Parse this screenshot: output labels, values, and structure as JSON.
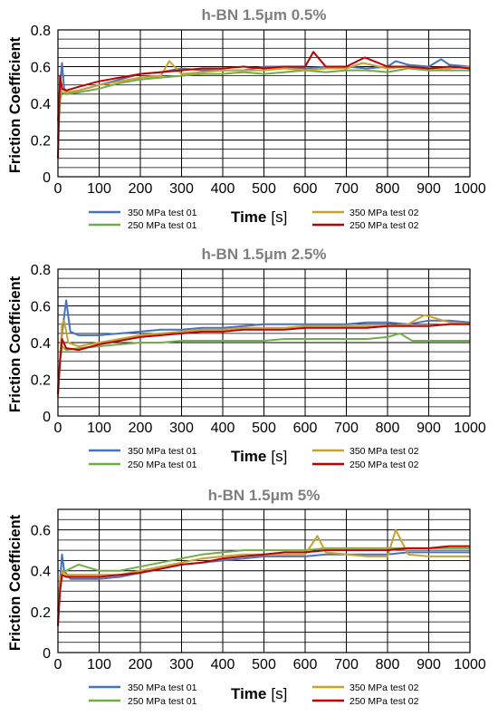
{
  "chart_data": [
    {
      "type": "line",
      "title": "h-BN 1.5μm 0.5%",
      "xlabel": "Time",
      "xunit": "[s]",
      "ylabel": "Friction Coefficient",
      "xlim": [
        0,
        1000
      ],
      "ylim": [
        0,
        0.8
      ],
      "xticks": [
        0,
        100,
        200,
        300,
        400,
        500,
        600,
        700,
        800,
        900,
        1000
      ],
      "yticks": [
        0,
        0.2,
        0.4,
        0.6,
        0.8
      ],
      "grid": true,
      "legend_position": "below",
      "series": [
        {
          "name": "350 MPa test 01",
          "color": "#4472c4",
          "x": [
            0,
            5,
            10,
            15,
            25,
            50,
            100,
            150,
            200,
            250,
            300,
            350,
            400,
            450,
            500,
            550,
            600,
            650,
            700,
            750,
            800,
            820,
            850,
            900,
            930,
            950,
            1000
          ],
          "y": [
            0.3,
            0.5,
            0.62,
            0.48,
            0.46,
            0.47,
            0.5,
            0.53,
            0.56,
            0.57,
            0.59,
            0.58,
            0.58,
            0.58,
            0.6,
            0.6,
            0.59,
            0.6,
            0.6,
            0.59,
            0.6,
            0.63,
            0.61,
            0.6,
            0.64,
            0.61,
            0.6
          ]
        },
        {
          "name": "250 MPa test 01",
          "color": "#70ad47",
          "x": [
            0,
            5,
            10,
            20,
            50,
            100,
            150,
            200,
            250,
            300,
            350,
            400,
            450,
            500,
            550,
            600,
            650,
            700,
            750,
            800,
            850,
            900,
            950,
            1000
          ],
          "y": [
            0.2,
            0.42,
            0.46,
            0.45,
            0.46,
            0.48,
            0.51,
            0.53,
            0.54,
            0.55,
            0.56,
            0.56,
            0.57,
            0.56,
            0.57,
            0.58,
            0.57,
            0.58,
            0.58,
            0.57,
            0.59,
            0.58,
            0.58,
            0.58
          ]
        },
        {
          "name": "350 MPa test 02",
          "color": "#c9a227",
          "x": [
            0,
            5,
            10,
            20,
            50,
            100,
            150,
            200,
            250,
            270,
            300,
            350,
            400,
            450,
            500,
            550,
            600,
            650,
            700,
            740,
            800,
            850,
            900,
            950,
            1000
          ],
          "y": [
            0.3,
            0.45,
            0.48,
            0.46,
            0.47,
            0.5,
            0.52,
            0.54,
            0.55,
            0.63,
            0.56,
            0.57,
            0.58,
            0.58,
            0.58,
            0.59,
            0.58,
            0.59,
            0.59,
            0.62,
            0.59,
            0.6,
            0.59,
            0.59,
            0.6
          ]
        },
        {
          "name": "250 MPa test 02",
          "color": "#c00000",
          "x": [
            0,
            5,
            10,
            20,
            50,
            100,
            150,
            200,
            250,
            300,
            350,
            400,
            450,
            500,
            550,
            600,
            620,
            650,
            700,
            745,
            800,
            850,
            900,
            950,
            1000
          ],
          "y": [
            0.1,
            0.55,
            0.48,
            0.47,
            0.49,
            0.52,
            0.54,
            0.56,
            0.57,
            0.58,
            0.59,
            0.59,
            0.6,
            0.59,
            0.6,
            0.6,
            0.68,
            0.6,
            0.6,
            0.65,
            0.6,
            0.6,
            0.59,
            0.6,
            0.59
          ]
        }
      ]
    },
    {
      "type": "line",
      "title": "h-BN 1.5μm 2.5%",
      "xlabel": "Time",
      "xunit": "[s]",
      "ylabel": "Friction Coefficient",
      "xlim": [
        0,
        1000
      ],
      "ylim": [
        0,
        0.8
      ],
      "xticks": [
        0,
        100,
        200,
        300,
        400,
        500,
        600,
        700,
        800,
        900,
        1000
      ],
      "yticks": [
        0,
        0.2,
        0.4,
        0.6,
        0.8
      ],
      "grid": true,
      "legend_position": "below",
      "series": [
        {
          "name": "350 MPa test 01",
          "color": "#4472c4",
          "x": [
            0,
            5,
            10,
            20,
            30,
            50,
            100,
            150,
            200,
            250,
            300,
            350,
            400,
            450,
            500,
            550,
            600,
            650,
            700,
            750,
            800,
            850,
            900,
            950,
            1000
          ],
          "y": [
            0.15,
            0.3,
            0.45,
            0.63,
            0.46,
            0.44,
            0.44,
            0.45,
            0.46,
            0.47,
            0.47,
            0.48,
            0.48,
            0.49,
            0.5,
            0.5,
            0.5,
            0.5,
            0.5,
            0.51,
            0.51,
            0.5,
            0.52,
            0.52,
            0.51
          ]
        },
        {
          "name": "250 MPa test 01",
          "color": "#70ad47",
          "x": [
            0,
            5,
            10,
            20,
            50,
            100,
            150,
            200,
            250,
            300,
            350,
            400,
            450,
            500,
            550,
            600,
            650,
            700,
            750,
            800,
            830,
            860,
            900,
            950,
            1000
          ],
          "y": [
            0.12,
            0.3,
            0.38,
            0.36,
            0.37,
            0.38,
            0.39,
            0.4,
            0.4,
            0.41,
            0.41,
            0.41,
            0.41,
            0.41,
            0.42,
            0.42,
            0.42,
            0.42,
            0.42,
            0.43,
            0.45,
            0.41,
            0.41,
            0.41,
            0.41
          ]
        },
        {
          "name": "350 MPa test 02",
          "color": "#c9a227",
          "x": [
            0,
            5,
            10,
            15,
            25,
            50,
            100,
            150,
            200,
            250,
            300,
            350,
            400,
            450,
            500,
            550,
            600,
            650,
            700,
            750,
            800,
            850,
            890,
            950,
            1000
          ],
          "y": [
            0.1,
            0.3,
            0.5,
            0.52,
            0.4,
            0.38,
            0.4,
            0.42,
            0.44,
            0.45,
            0.46,
            0.47,
            0.47,
            0.48,
            0.48,
            0.48,
            0.49,
            0.49,
            0.49,
            0.49,
            0.49,
            0.5,
            0.55,
            0.51,
            0.5
          ]
        },
        {
          "name": "250 MPa test 02",
          "color": "#c00000",
          "x": [
            0,
            5,
            10,
            20,
            50,
            100,
            150,
            200,
            250,
            300,
            350,
            400,
            450,
            500,
            550,
            600,
            650,
            700,
            750,
            800,
            850,
            900,
            950,
            1000
          ],
          "y": [
            0.12,
            0.3,
            0.42,
            0.37,
            0.36,
            0.39,
            0.41,
            0.43,
            0.44,
            0.45,
            0.46,
            0.46,
            0.47,
            0.47,
            0.47,
            0.48,
            0.48,
            0.48,
            0.48,
            0.49,
            0.49,
            0.49,
            0.5,
            0.5
          ]
        }
      ]
    },
    {
      "type": "line",
      "title": "h-BN 1.5μm 5%",
      "xlabel": "Time",
      "xunit": "[s]",
      "ylabel": "Friction Coefficient",
      "xlim": [
        0,
        1000
      ],
      "ylim": [
        0,
        0.7
      ],
      "xticks": [
        0,
        100,
        200,
        300,
        400,
        500,
        600,
        700,
        800,
        900,
        1000
      ],
      "yticks": [
        0,
        0.2,
        0.4,
        0.6
      ],
      "grid": true,
      "legend_position": "below",
      "series": [
        {
          "name": "350 MPa test 01",
          "color": "#4472c4",
          "x": [
            0,
            5,
            10,
            15,
            30,
            50,
            100,
            150,
            200,
            250,
            300,
            350,
            400,
            450,
            500,
            550,
            600,
            650,
            700,
            750,
            800,
            850,
            900,
            950,
            1000
          ],
          "y": [
            0.15,
            0.35,
            0.48,
            0.4,
            0.36,
            0.36,
            0.36,
            0.37,
            0.39,
            0.41,
            0.43,
            0.44,
            0.45,
            0.46,
            0.47,
            0.47,
            0.47,
            0.48,
            0.48,
            0.48,
            0.48,
            0.49,
            0.49,
            0.49,
            0.49
          ]
        },
        {
          "name": "250 MPa test 01",
          "color": "#70ad47",
          "x": [
            0,
            5,
            10,
            20,
            50,
            100,
            150,
            200,
            250,
            300,
            350,
            400,
            450,
            500,
            550,
            600,
            650,
            700,
            750,
            800,
            850,
            900,
            950,
            1000
          ],
          "y": [
            0.2,
            0.35,
            0.39,
            0.4,
            0.43,
            0.4,
            0.4,
            0.42,
            0.44,
            0.46,
            0.48,
            0.49,
            0.5,
            0.5,
            0.5,
            0.5,
            0.51,
            0.51,
            0.51,
            0.51,
            0.51,
            0.51,
            0.51,
            0.51
          ]
        },
        {
          "name": "350 MPa test 02",
          "color": "#c9a227",
          "x": [
            0,
            5,
            10,
            20,
            50,
            100,
            150,
            200,
            250,
            300,
            350,
            400,
            450,
            500,
            550,
            600,
            630,
            650,
            700,
            750,
            800,
            820,
            850,
            900,
            950,
            1000
          ],
          "y": [
            0.15,
            0.35,
            0.4,
            0.38,
            0.38,
            0.38,
            0.38,
            0.4,
            0.42,
            0.44,
            0.46,
            0.47,
            0.48,
            0.48,
            0.48,
            0.48,
            0.57,
            0.49,
            0.48,
            0.47,
            0.47,
            0.6,
            0.48,
            0.47,
            0.47,
            0.47
          ]
        },
        {
          "name": "250 MPa test 02",
          "color": "#c00000",
          "x": [
            0,
            5,
            10,
            20,
            50,
            100,
            150,
            200,
            250,
            300,
            350,
            400,
            450,
            500,
            550,
            600,
            650,
            700,
            750,
            800,
            850,
            900,
            950,
            1000
          ],
          "y": [
            0.13,
            0.3,
            0.38,
            0.37,
            0.37,
            0.37,
            0.38,
            0.39,
            0.41,
            0.43,
            0.44,
            0.46,
            0.47,
            0.48,
            0.49,
            0.49,
            0.5,
            0.5,
            0.5,
            0.5,
            0.51,
            0.51,
            0.52,
            0.52
          ]
        }
      ]
    }
  ]
}
